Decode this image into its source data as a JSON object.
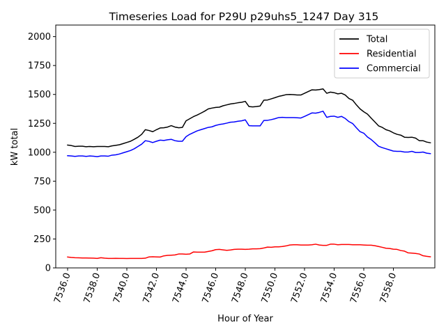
{
  "chart_data": {
    "type": "line",
    "title": "Timeseries Load for P29U p29uhs5_1247  Day 315",
    "xlabel": "Hour of Year",
    "ylabel": "kW total",
    "xlim": [
      7535.2,
      7560.8
    ],
    "ylim": [
      0,
      2100
    ],
    "yticks": [
      0,
      250,
      500,
      750,
      1000,
      1250,
      1500,
      1750,
      2000
    ],
    "ytick_labels": [
      "0",
      "250",
      "500",
      "750",
      "1000",
      "1250",
      "1500",
      "1750",
      "2000"
    ],
    "xticks": [
      7536,
      7538,
      7540,
      7542,
      7544,
      7546,
      7548,
      7550,
      7552,
      7554,
      7556,
      7558
    ],
    "xtick_labels": [
      "7536.0",
      "7538.0",
      "7540.0",
      "7542.0",
      "7544.0",
      "7546.0",
      "7548.0",
      "7550.0",
      "7552.0",
      "7554.0",
      "7556.0",
      "7558.0"
    ],
    "x_start": 7536,
    "x_step": 0.25,
    "legend_position": "upper right",
    "series": [
      {
        "name": "Total",
        "color": "#000000",
        "values": [
          1062,
          1058,
          1050,
          1052,
          1052,
          1048,
          1050,
          1048,
          1050,
          1050,
          1050,
          1048,
          1055,
          1060,
          1065,
          1075,
          1085,
          1095,
          1112,
          1130,
          1155,
          1195,
          1188,
          1178,
          1195,
          1210,
          1212,
          1218,
          1230,
          1218,
          1212,
          1215,
          1272,
          1290,
          1308,
          1322,
          1338,
          1355,
          1375,
          1382,
          1388,
          1390,
          1402,
          1410,
          1418,
          1422,
          1428,
          1432,
          1440,
          1395,
          1392,
          1395,
          1400,
          1450,
          1452,
          1462,
          1472,
          1483,
          1490,
          1498,
          1500,
          1498,
          1495,
          1495,
          1510,
          1525,
          1540,
          1538,
          1542,
          1548,
          1510,
          1520,
          1515,
          1505,
          1510,
          1495,
          1465,
          1450,
          1410,
          1375,
          1350,
          1330,
          1295,
          1262,
          1228,
          1215,
          1195,
          1185,
          1168,
          1155,
          1148,
          1130,
          1128,
          1130,
          1122,
          1100,
          1100,
          1088,
          1082
        ]
      },
      {
        "name": "Residential",
        "color": "#ff0000",
        "values": [
          94,
          90,
          88,
          87,
          86,
          86,
          85,
          84,
          82,
          88,
          84,
          82,
          82,
          83,
          82,
          82,
          81,
          82,
          82,
          82,
          82,
          84,
          95,
          96,
          95,
          94,
          104,
          108,
          110,
          112,
          120,
          120,
          118,
          120,
          138,
          136,
          136,
          136,
          142,
          148,
          158,
          160,
          156,
          152,
          155,
          160,
          162,
          162,
          160,
          162,
          165,
          165,
          166,
          172,
          180,
          178,
          182,
          182,
          185,
          190,
          198,
          200,
          200,
          198,
          198,
          198,
          200,
          205,
          198,
          195,
          195,
          205,
          205,
          200,
          202,
          202,
          202,
          200,
          200,
          200,
          198,
          196,
          196,
          192,
          185,
          178,
          170,
          168,
          162,
          160,
          150,
          145,
          130,
          128,
          125,
          120,
          105,
          100,
          96
        ]
      },
      {
        "name": "Commercial",
        "color": "#0000ff",
        "values": [
          970,
          968,
          964,
          968,
          968,
          964,
          968,
          966,
          962,
          968,
          968,
          966,
          975,
          978,
          985,
          995,
          1005,
          1015,
          1030,
          1050,
          1070,
          1100,
          1094,
          1084,
          1095,
          1105,
          1102,
          1108,
          1112,
          1100,
          1095,
          1095,
          1135,
          1155,
          1170,
          1185,
          1195,
          1205,
          1215,
          1220,
          1232,
          1240,
          1245,
          1252,
          1260,
          1262,
          1268,
          1272,
          1280,
          1230,
          1228,
          1228,
          1228,
          1275,
          1276,
          1282,
          1290,
          1300,
          1302,
          1300,
          1300,
          1300,
          1298,
          1296,
          1310,
          1325,
          1340,
          1338,
          1345,
          1355,
          1302,
          1310,
          1312,
          1302,
          1310,
          1292,
          1265,
          1248,
          1212,
          1178,
          1165,
          1132,
          1110,
          1082,
          1052,
          1040,
          1030,
          1020,
          1010,
          1008,
          1008,
          1002,
          1002,
          1008,
          998,
          998,
          1002,
          992,
          988
        ]
      }
    ]
  }
}
